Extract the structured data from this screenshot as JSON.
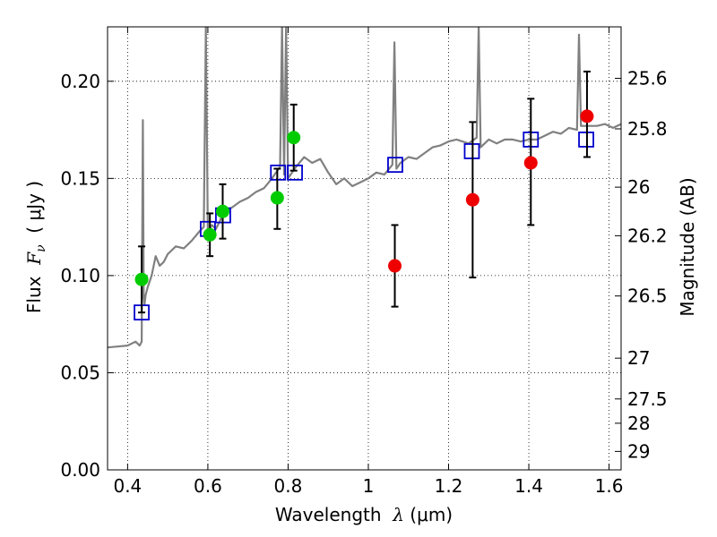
{
  "chart_data": {
    "type": "scatter",
    "xlabel": "Wavelength λ (μm)",
    "xlabel_parts": {
      "prefix": "Wavelength  ",
      "math": "λ",
      "unit": " (μm)"
    },
    "ylabel_parts": {
      "prefix": "Flux  ",
      "math": "F",
      "sub": "ν",
      "unit": "  ( μJy )"
    },
    "ylabel_right": "Magnitude (AB)",
    "xlim": [
      0.35,
      1.63
    ],
    "ylim": [
      0.0,
      0.228
    ],
    "xticks": [
      0.4,
      0.6,
      0.8,
      1.0,
      1.2,
      1.4,
      1.6
    ],
    "xtick_labels": [
      "0.4",
      "0.6",
      "0.8",
      "1",
      "1.2",
      "1.4",
      "1.6"
    ],
    "yticks": [
      0.0,
      0.05,
      0.1,
      0.15,
      0.2
    ],
    "ytick_labels": [
      "0.00",
      "0.05",
      "0.10",
      "0.15",
      "0.20"
    ],
    "right_ticks": [
      {
        "label": "25.6",
        "flux": 0.2015
      },
      {
        "label": "25.8",
        "flux": 0.1755
      },
      {
        "label": "26",
        "flux": 0.1455
      },
      {
        "label": "26.2",
        "flux": 0.1205
      },
      {
        "label": "26.5",
        "flux": 0.0895
      },
      {
        "label": "27",
        "flux": 0.0575
      },
      {
        "label": "27.5",
        "flux": 0.0365
      },
      {
        "label": "28",
        "flux": 0.024
      },
      {
        "label": "29",
        "flux": 0.0095
      }
    ],
    "grid": true,
    "grid_style": "dotted",
    "series": [
      {
        "kind": "line",
        "color": "#808080",
        "x": [
          0.35,
          0.4,
          0.42,
          0.43,
          0.435,
          0.438,
          0.44,
          0.442,
          0.445,
          0.45,
          0.46,
          0.47,
          0.48,
          0.49,
          0.5,
          0.52,
          0.54,
          0.56,
          0.58,
          0.59,
          0.595,
          0.6,
          0.61,
          0.62,
          0.63,
          0.64,
          0.66,
          0.68,
          0.7,
          0.72,
          0.74,
          0.76,
          0.77,
          0.78,
          0.785,
          0.79,
          0.795,
          0.8,
          0.82,
          0.84,
          0.86,
          0.88,
          0.9,
          0.92,
          0.94,
          0.96,
          0.98,
          1.0,
          1.02,
          1.04,
          1.06,
          1.065,
          1.07,
          1.08,
          1.1,
          1.12,
          1.14,
          1.16,
          1.18,
          1.2,
          1.22,
          1.25,
          1.27,
          1.275,
          1.28,
          1.3,
          1.32,
          1.34,
          1.36,
          1.38,
          1.4,
          1.42,
          1.44,
          1.46,
          1.48,
          1.5,
          1.52,
          1.525,
          1.53,
          1.55,
          1.57,
          1.59,
          1.61,
          1.63
        ],
        "values": [
          0.063,
          0.064,
          0.066,
          0.064,
          0.066,
          0.18,
          0.09,
          0.085,
          0.09,
          0.094,
          0.1,
          0.11,
          0.105,
          0.107,
          0.111,
          0.115,
          0.114,
          0.118,
          0.123,
          0.125,
          0.228,
          0.122,
          0.126,
          0.124,
          0.128,
          0.133,
          0.135,
          0.138,
          0.14,
          0.143,
          0.145,
          0.15,
          0.153,
          0.156,
          0.228,
          0.152,
          0.228,
          0.15,
          0.156,
          0.161,
          0.158,
          0.16,
          0.153,
          0.147,
          0.15,
          0.146,
          0.148,
          0.15,
          0.153,
          0.152,
          0.157,
          0.22,
          0.155,
          0.158,
          0.161,
          0.16,
          0.163,
          0.166,
          0.167,
          0.169,
          0.17,
          0.168,
          0.171,
          0.228,
          0.166,
          0.17,
          0.168,
          0.17,
          0.17,
          0.169,
          0.17,
          0.17,
          0.172,
          0.174,
          0.173,
          0.176,
          0.175,
          0.224,
          0.177,
          0.177,
          0.177,
          0.178,
          0.176,
          0.178
        ]
      },
      {
        "kind": "open-square",
        "color": "#0000cc",
        "x": [
          0.435,
          0.6,
          0.638,
          0.775,
          0.817,
          1.067,
          1.258,
          1.405,
          1.543
        ],
        "values": [
          0.081,
          0.124,
          0.131,
          0.153,
          0.153,
          0.157,
          0.164,
          0.17,
          0.17
        ]
      },
      {
        "kind": "filled-circle",
        "color": "#00cc00",
        "x": [
          0.435,
          0.605,
          0.637,
          0.773,
          0.814
        ],
        "values": [
          0.098,
          0.121,
          0.133,
          0.14,
          0.171
        ],
        "err_lo": [
          0.081,
          0.11,
          0.119,
          0.124,
          0.154
        ],
        "err_hi": [
          0.115,
          0.132,
          0.147,
          0.155,
          0.188
        ]
      },
      {
        "kind": "filled-circle",
        "color": "#ee0000",
        "x": [
          1.066,
          1.26,
          1.405,
          1.545
        ],
        "values": [
          0.105,
          0.139,
          0.158,
          0.182
        ],
        "err_lo": [
          0.084,
          0.099,
          0.126,
          0.161
        ],
        "err_hi": [
          0.126,
          0.179,
          0.191,
          0.205
        ]
      }
    ]
  }
}
